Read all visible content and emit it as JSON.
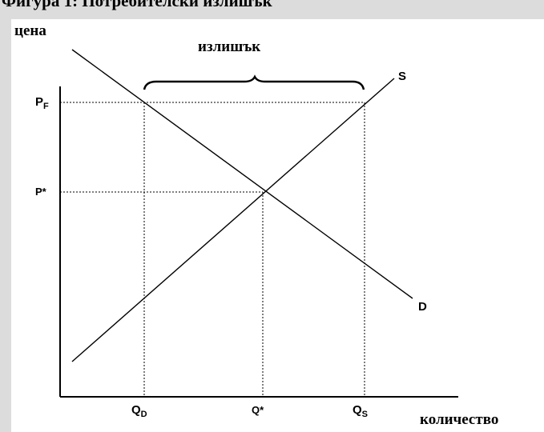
{
  "title": "Фигура 1: Потребителски излишък",
  "axes": {
    "y_label": "цена",
    "x_label": "количество"
  },
  "annotation": "излишък",
  "curves": {
    "supply": "S",
    "demand": "D"
  },
  "price_labels": [
    {
      "main": "P",
      "sub": "F"
    },
    {
      "main": "P*",
      "sub": ""
    }
  ],
  "quantity_labels": [
    {
      "main": "Q",
      "sub": "D"
    },
    {
      "main": "Q*",
      "sub": ""
    },
    {
      "main": "Q",
      "sub": "S"
    }
  ]
}
